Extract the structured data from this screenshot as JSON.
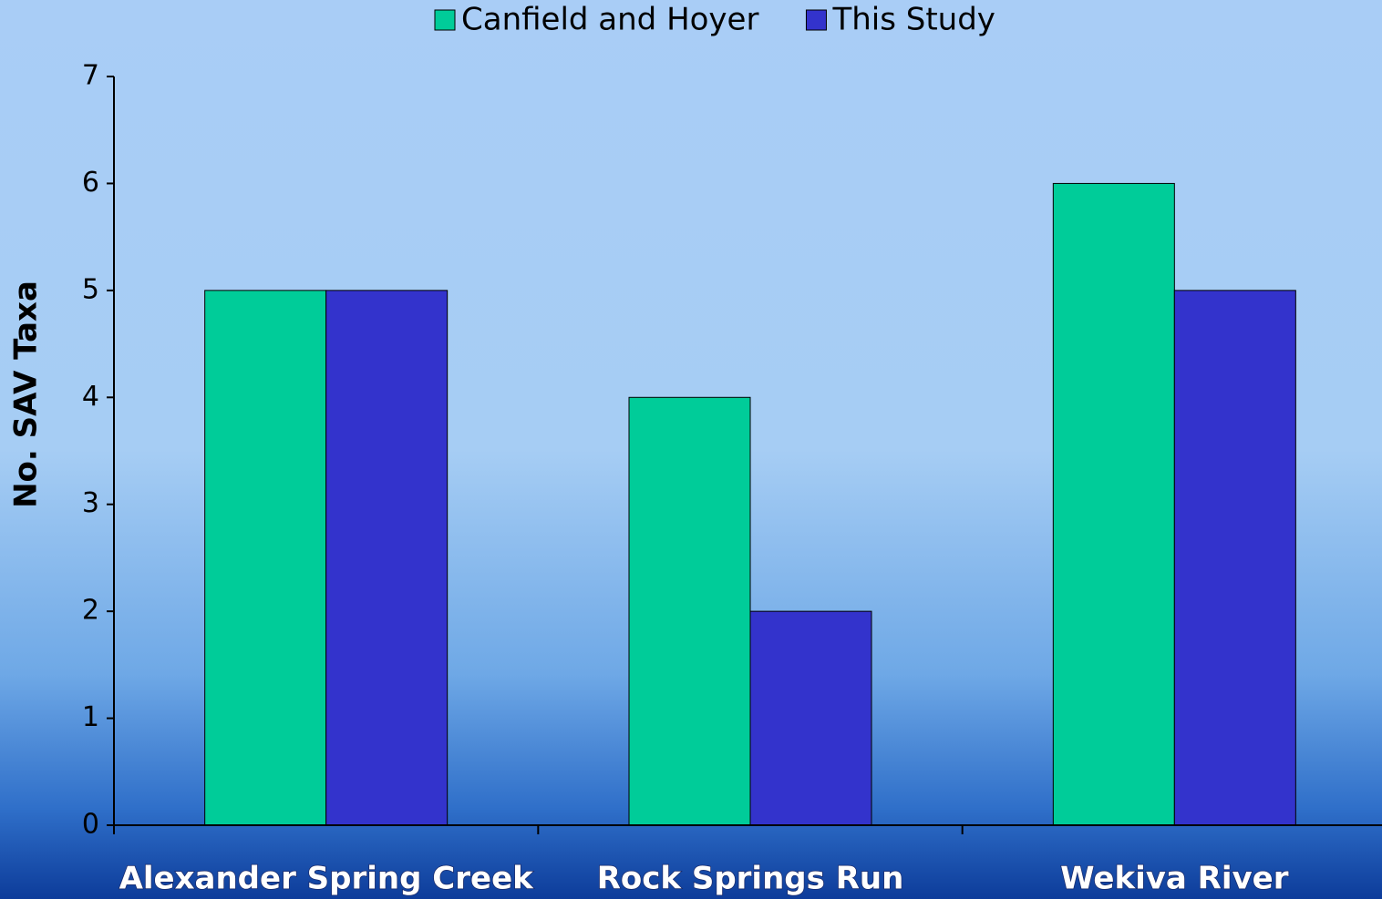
{
  "chart_data": {
    "type": "bar",
    "categories": [
      "Alexander Spring Creek",
      "Rock Springs Run",
      "Wekiva River"
    ],
    "series": [
      {
        "name": "Canfield and Hoyer",
        "color": "#00cc99",
        "values": [
          5,
          4,
          6
        ]
      },
      {
        "name": "This Study",
        "color": "#3333cc",
        "values": [
          5,
          2,
          5
        ]
      }
    ],
    "y_label": "No. SAV Taxa",
    "ylim": [
      0,
      7
    ],
    "yticks": [
      0,
      1,
      2,
      3,
      4,
      5,
      6,
      7
    ],
    "legend": "top"
  }
}
